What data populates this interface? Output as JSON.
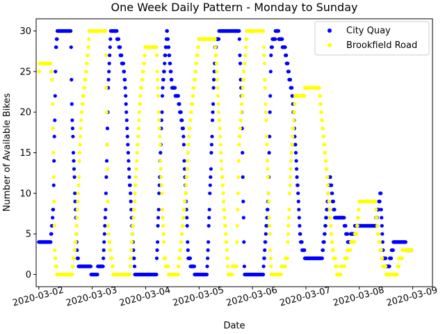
{
  "chart_data": {
    "type": "scatter",
    "title": "One Week Daily Pattern - Monday to Sunday",
    "xlabel": "Date",
    "ylabel": "Number of Available Bikes",
    "xlim": [
      -0.05,
      7.37
    ],
    "ylim": [
      -1.5,
      31.5
    ],
    "x_tick_labels": [
      "2020-03-02",
      "2020-03-03",
      "2020-03-04",
      "2020-03-05",
      "2020-03-06",
      "2020-03-07",
      "2020-03-08",
      "2020-03-09"
    ],
    "x_tick_values": [
      0,
      1,
      2,
      3,
      4,
      5,
      6,
      7
    ],
    "y_ticks": [
      0,
      5,
      10,
      15,
      20,
      25,
      30
    ],
    "legend_position": "top-right",
    "series": [
      {
        "name": "City Quay",
        "color": "#0000ff",
        "knots": [
          [
            0.0,
            4
          ],
          [
            0.22,
            4
          ],
          [
            0.27,
            8
          ],
          [
            0.32,
            28
          ],
          [
            0.35,
            30
          ],
          [
            0.6,
            30
          ],
          [
            0.62,
            20
          ],
          [
            0.72,
            2
          ],
          [
            0.76,
            1
          ],
          [
            0.95,
            1
          ],
          [
            1.0,
            0
          ],
          [
            1.2,
            1
          ],
          [
            1.25,
            8
          ],
          [
            1.3,
            23
          ],
          [
            1.35,
            30
          ],
          [
            1.45,
            30
          ],
          [
            1.6,
            25
          ],
          [
            1.75,
            5
          ],
          [
            1.8,
            0
          ],
          [
            2.2,
            0
          ],
          [
            2.32,
            23
          ],
          [
            2.4,
            30
          ],
          [
            2.5,
            23
          ],
          [
            2.6,
            22
          ],
          [
            2.7,
            18
          ],
          [
            2.75,
            10
          ],
          [
            2.8,
            2
          ],
          [
            2.95,
            0
          ],
          [
            3.15,
            0
          ],
          [
            3.3,
            28
          ],
          [
            3.4,
            30
          ],
          [
            3.75,
            30
          ],
          [
            3.8,
            20
          ],
          [
            3.85,
            0
          ],
          [
            4.2,
            0
          ],
          [
            4.3,
            10
          ],
          [
            4.35,
            28
          ],
          [
            4.45,
            30
          ],
          [
            4.6,
            28
          ],
          [
            4.75,
            22
          ],
          [
            4.82,
            14
          ],
          [
            4.9,
            4
          ],
          [
            5.0,
            2
          ],
          [
            5.3,
            2
          ],
          [
            5.35,
            5
          ],
          [
            5.45,
            12
          ],
          [
            5.55,
            7
          ],
          [
            5.7,
            7
          ],
          [
            5.8,
            4
          ],
          [
            5.95,
            6
          ],
          [
            6.05,
            6
          ],
          [
            6.3,
            6
          ],
          [
            6.4,
            10
          ],
          [
            6.45,
            2
          ],
          [
            6.55,
            1
          ],
          [
            6.65,
            4
          ],
          [
            6.85,
            4
          ],
          [
            6.9,
            3
          ],
          [
            6.98,
            3
          ]
        ]
      },
      {
        "name": "Brookfield Road",
        "color": "#ffff00",
        "knots": [
          [
            0.0,
            25
          ],
          [
            0.02,
            26
          ],
          [
            0.22,
            26
          ],
          [
            0.25,
            24
          ],
          [
            0.3,
            2
          ],
          [
            0.35,
            0
          ],
          [
            0.62,
            0
          ],
          [
            0.7,
            5
          ],
          [
            0.8,
            20
          ],
          [
            0.9,
            26
          ],
          [
            0.95,
            30
          ],
          [
            1.25,
            30
          ],
          [
            1.3,
            5
          ],
          [
            1.4,
            0
          ],
          [
            1.7,
            0
          ],
          [
            1.8,
            10
          ],
          [
            1.9,
            22
          ],
          [
            2.0,
            28
          ],
          [
            2.2,
            28
          ],
          [
            2.28,
            14
          ],
          [
            2.35,
            2
          ],
          [
            2.45,
            0
          ],
          [
            2.6,
            0
          ],
          [
            2.65,
            3
          ],
          [
            2.75,
            10
          ],
          [
            2.82,
            18
          ],
          [
            2.95,
            26
          ],
          [
            3.0,
            29
          ],
          [
            3.3,
            29
          ],
          [
            3.45,
            10
          ],
          [
            3.55,
            0
          ],
          [
            3.7,
            1
          ],
          [
            3.75,
            16
          ],
          [
            3.85,
            26
          ],
          [
            3.9,
            30
          ],
          [
            4.2,
            30
          ],
          [
            4.3,
            10
          ],
          [
            4.35,
            0
          ],
          [
            4.5,
            0
          ],
          [
            4.65,
            2
          ],
          [
            4.72,
            14
          ],
          [
            4.8,
            22
          ],
          [
            4.95,
            22
          ],
          [
            5.0,
            23
          ],
          [
            5.25,
            23
          ],
          [
            5.4,
            12
          ],
          [
            5.5,
            3
          ],
          [
            5.6,
            0
          ],
          [
            5.7,
            1
          ],
          [
            5.8,
            3
          ],
          [
            5.95,
            5
          ],
          [
            6.0,
            9
          ],
          [
            6.3,
            9
          ],
          [
            6.35,
            5
          ],
          [
            6.45,
            1
          ],
          [
            6.55,
            0
          ],
          [
            6.7,
            0
          ],
          [
            6.75,
            2
          ],
          [
            6.85,
            3
          ],
          [
            6.98,
            3
          ]
        ]
      }
    ]
  }
}
